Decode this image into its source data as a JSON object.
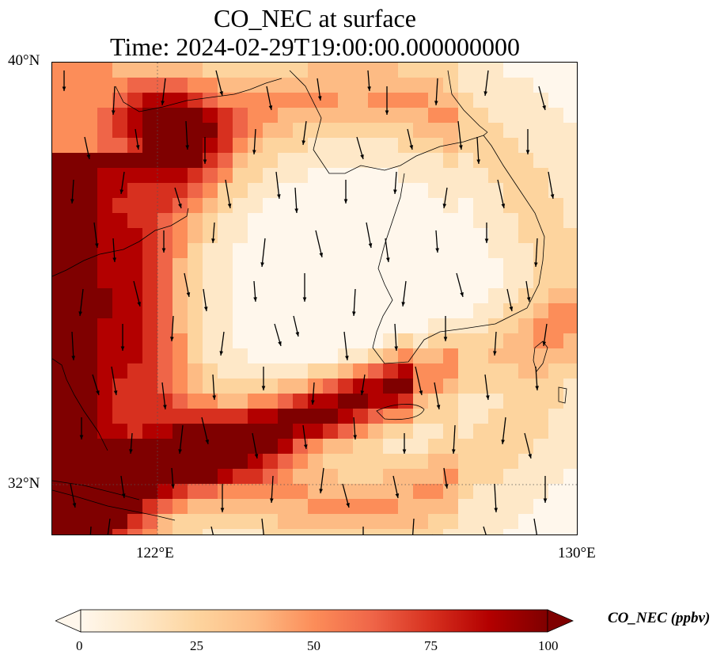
{
  "title_line1": "CO_NEC at surface",
  "title_line2": "Time: 2024-02-29T19:00:00.000000000",
  "axes": {
    "lat_labels": [
      "40°N",
      "32°N"
    ],
    "lon_labels": [
      "122°E",
      "130°E"
    ]
  },
  "colorbar": {
    "label": "CO_NEC (ppbv)",
    "ticks": [
      "0",
      "25",
      "50",
      "75",
      "100"
    ],
    "min": 0,
    "max": 100,
    "extend": "both",
    "colormap": "OrRd",
    "colors": [
      "#fff7ec",
      "#fee8c8",
      "#fdd49e",
      "#fdbb84",
      "#fc8d59",
      "#ef6548",
      "#d7301f",
      "#b30000",
      "#7f0000"
    ]
  },
  "map": {
    "extent": {
      "lon_min": 120,
      "lon_max": 130,
      "lat_min": 31,
      "lat_max": 40
    },
    "gridlines": {
      "lon": [
        122
      ],
      "lat": [
        32
      ],
      "style": "dotted"
    },
    "field": "CO_NEC",
    "wind_vectors": "shown"
  }
}
